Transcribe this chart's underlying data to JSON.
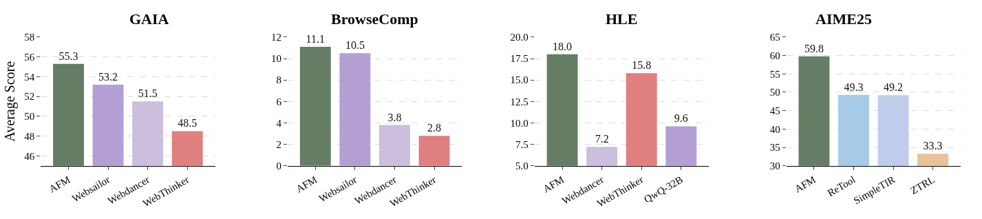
{
  "chart_data": [
    {
      "type": "bar",
      "title": "GAIA",
      "ylabel": "Average Score",
      "categories": [
        "AFM",
        "Websailor",
        "Webdancer",
        "WebThinker"
      ],
      "values": [
        55.3,
        53.2,
        51.5,
        48.5
      ],
      "colors": [
        "#657d64",
        "#b49fd4",
        "#cbbfdd",
        "#e07f7f"
      ],
      "ylim": [
        45,
        58
      ],
      "yticks": [
        46,
        48,
        50,
        52,
        54,
        56,
        58
      ],
      "grid": "y",
      "data_labels": true
    },
    {
      "type": "bar",
      "title": "BrowseComp",
      "categories": [
        "AFM",
        "Websailor",
        "Webdancer",
        "WebThinker"
      ],
      "values": [
        11.1,
        10.5,
        3.8,
        2.8
      ],
      "colors": [
        "#657d64",
        "#b49fd4",
        "#cbbfdd",
        "#e07f7f"
      ],
      "ylim": [
        0,
        12
      ],
      "yticks": [
        0,
        2,
        4,
        6,
        8,
        10,
        12
      ],
      "grid": "y",
      "data_labels": true
    },
    {
      "type": "bar",
      "title": "HLE",
      "categories": [
        "AFM",
        "Webdancer",
        "WebThinker",
        "QwQ-32B"
      ],
      "values": [
        18.0,
        7.2,
        15.8,
        9.6
      ],
      "colors": [
        "#657d64",
        "#cbbfdd",
        "#e07f7f",
        "#b49fd4"
      ],
      "value_labels": [
        "18.0",
        "7.2",
        "15.8",
        "9.6"
      ],
      "ylim": [
        5,
        20
      ],
      "yticks": [
        {
          "value": 5,
          "label": "5.0"
        },
        7.5,
        {
          "value": 10,
          "label": "10.0"
        },
        12.5,
        {
          "value": 15,
          "label": "15.0"
        },
        17.5,
        {
          "value": 20,
          "label": "20.0"
        }
      ],
      "grid": "y"
    },
    {
      "type": "bar",
      "title": "AIME25",
      "categories": [
        "AFM",
        "ReTool",
        "SimpleTIR",
        "ZTRL"
      ],
      "values": [
        59.8,
        49.3,
        49.2,
        33.3
      ],
      "colors": [
        "#657d64",
        "#a6cbe7",
        "#bfcdeb",
        "#ebc199"
      ],
      "ylim": [
        30,
        65
      ],
      "yticks": [
        30,
        35,
        40,
        45,
        50,
        55,
        60,
        65
      ],
      "grid": "y",
      "data_labels": true
    }
  ]
}
